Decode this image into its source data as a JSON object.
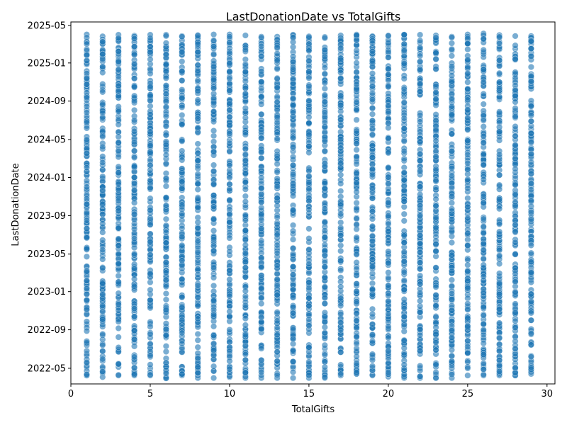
{
  "chart_data": {
    "type": "scatter",
    "title": "LastDonationDate vs TotalGifts",
    "xlabel": "TotalGifts",
    "ylabel": "LastDonationDate",
    "xlim": [
      0,
      30.5
    ],
    "ylim": [
      "2022-03-12",
      "2025-05-12"
    ],
    "x_ticks": [
      0,
      5,
      10,
      15,
      20,
      25,
      30
    ],
    "y_ticks": [
      "2022-05",
      "2022-09",
      "2023-01",
      "2023-05",
      "2023-09",
      "2024-01",
      "2024-05",
      "2024-09",
      "2025-01",
      "2025-05"
    ],
    "y_tick_values": [
      "2022-05-01",
      "2022-09-01",
      "2023-01-01",
      "2023-05-01",
      "2023-09-01",
      "2024-01-01",
      "2024-05-01",
      "2024-09-01",
      "2025-01-01",
      "2025-05-01"
    ],
    "x_values": [
      1,
      2,
      3,
      4,
      5,
      6,
      7,
      8,
      9,
      10,
      11,
      12,
      13,
      14,
      15,
      16,
      17,
      18,
      19,
      20,
      21,
      22,
      23,
      24,
      25,
      26,
      27,
      28,
      29
    ],
    "date_range_per_x": {
      "1": [
        "2022-04-08",
        "2025-04-02"
      ],
      "2": [
        "2022-04-03",
        "2025-03-27"
      ],
      "3": [
        "2022-04-08",
        "2025-04-01"
      ],
      "4": [
        "2022-04-08",
        "2025-03-29"
      ],
      "5": [
        "2022-04-08",
        "2025-04-01"
      ],
      "6": [
        "2022-03-30",
        "2025-04-01"
      ],
      "7": [
        "2022-04-08",
        "2025-03-28"
      ],
      "8": [
        "2022-03-31",
        "2025-03-31"
      ],
      "9": [
        "2022-03-31",
        "2025-04-02"
      ],
      "10": [
        "2022-04-03",
        "2025-04-02"
      ],
      "11": [
        "2022-03-31",
        "2025-03-30"
      ],
      "12": [
        "2022-03-31",
        "2025-03-26"
      ],
      "13": [
        "2022-03-31",
        "2025-03-26"
      ],
      "14": [
        "2022-03-31",
        "2025-04-01"
      ],
      "15": [
        "2022-03-31",
        "2025-03-27"
      ],
      "16": [
        "2022-03-31",
        "2025-03-25"
      ],
      "17": [
        "2022-04-08",
        "2025-03-30"
      ],
      "18": [
        "2022-04-13",
        "2025-04-02"
      ],
      "19": [
        "2022-04-08",
        "2025-03-28"
      ],
      "20": [
        "2022-04-04",
        "2025-03-30"
      ],
      "21": [
        "2022-03-31",
        "2025-04-02"
      ],
      "22": [
        "2022-03-31",
        "2025-04-01"
      ],
      "23": [
        "2022-03-31",
        "2025-03-30"
      ],
      "24": [
        "2022-03-31",
        "2025-03-26"
      ],
      "25": [
        "2022-04-08",
        "2025-04-02"
      ],
      "26": [
        "2022-04-08",
        "2025-04-05"
      ],
      "27": [
        "2022-04-08",
        "2025-03-31"
      ],
      "28": [
        "2022-04-08",
        "2025-03-28"
      ],
      "29": [
        "2022-04-13",
        "2025-03-28"
      ]
    },
    "marker_color": "#1f77b4",
    "grid": false,
    "legend": "none"
  }
}
